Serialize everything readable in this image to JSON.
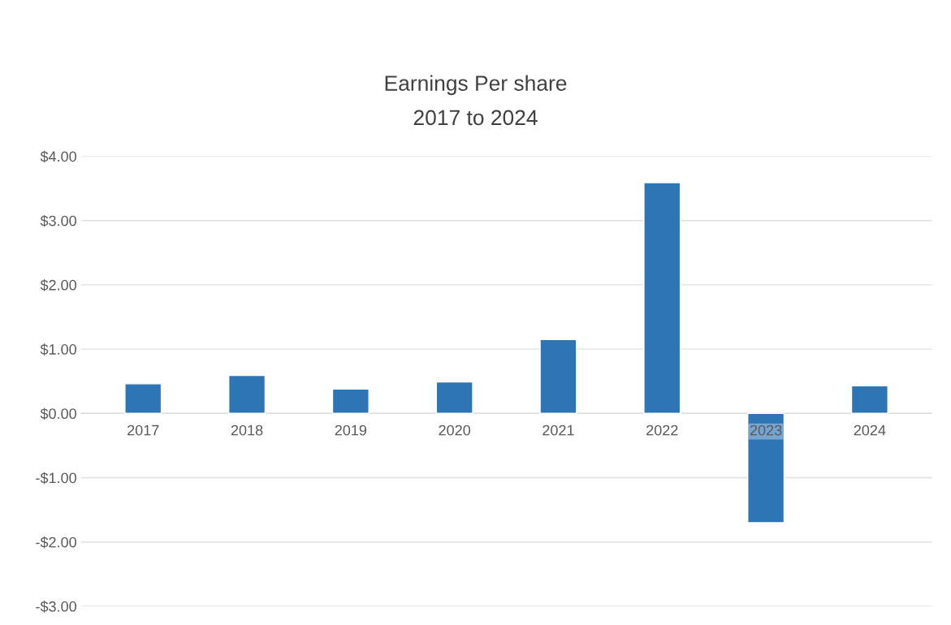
{
  "chart_data": {
    "type": "bar",
    "title": "Earnings Per share",
    "subtitle": "2017 to 2024",
    "categories": [
      "2017",
      "2018",
      "2019",
      "2020",
      "2021",
      "2022",
      "2023",
      "2024"
    ],
    "values": [
      0.46,
      0.59,
      0.38,
      0.49,
      1.15,
      3.59,
      -1.7,
      0.43
    ],
    "color": "#2e75b6",
    "ylim": [
      -3,
      4
    ],
    "yticks": [
      {
        "value": -3,
        "label": "-$3.00"
      },
      {
        "value": -2,
        "label": "-$2.00"
      },
      {
        "value": -1,
        "label": "-$1.00"
      },
      {
        "value": 0,
        "label": "$0.00"
      },
      {
        "value": 1,
        "label": "$1.00"
      },
      {
        "value": 2,
        "label": "$2.00"
      },
      {
        "value": 3,
        "label": "$3.00"
      },
      {
        "value": 4,
        "label": "$4.00"
      }
    ],
    "grid": "y"
  }
}
